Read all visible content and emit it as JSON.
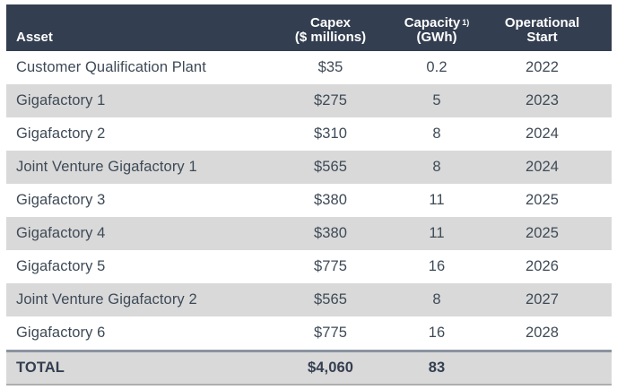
{
  "colors": {
    "header_bg": "#333E50",
    "header_text": "#FFFFFF",
    "row_bg": "#FFFFFF",
    "row_alt_bg": "#D9D9D9",
    "body_text": "#3E4A57",
    "total_row_bg": "#D9D9D9",
    "total_border_top": "#8B93A0",
    "total_border_bottom": "#AEAEAE"
  },
  "header": {
    "asset": "Asset",
    "capex_line1": "Capex",
    "capex_line2": "($ millions)",
    "capacity_line1": "Capacity",
    "capacity_sup": "1)",
    "capacity_line2": "(GWh)",
    "start_line1": "Operational",
    "start_line2": "Start"
  },
  "table": {
    "rows": [
      {
        "asset": "Customer Qualification Plant",
        "capex": "$35",
        "capacity": "0.2",
        "start": "2022"
      },
      {
        "asset": "Gigafactory 1",
        "capex": "$275",
        "capacity": "5",
        "start": "2023"
      },
      {
        "asset": "Gigafactory 2",
        "capex": "$310",
        "capacity": "8",
        "start": "2024"
      },
      {
        "asset": "Joint Venture Gigafactory 1",
        "capex": "$565",
        "capacity": "8",
        "start": "2024"
      },
      {
        "asset": "Gigafactory 3",
        "capex": "$380",
        "capacity": "11",
        "start": "2025"
      },
      {
        "asset": "Gigafactory 4",
        "capex": "$380",
        "capacity": "11",
        "start": "2025"
      },
      {
        "asset": "Gigafactory 5",
        "capex": "$775",
        "capacity": "16",
        "start": "2026"
      },
      {
        "asset": "Joint Venture Gigafactory 2",
        "capex": "$565",
        "capacity": "8",
        "start": "2027"
      },
      {
        "asset": "Gigafactory 6",
        "capex": "$775",
        "capacity": "16",
        "start": "2028"
      }
    ],
    "total": {
      "asset": "TOTAL",
      "capex": "$4,060",
      "capacity": "83",
      "start": ""
    }
  },
  "chart_data": {
    "type": "table",
    "columns": [
      "Asset",
      "Capex ($ millions)",
      "Capacity 1) (GWh)",
      "Operational Start"
    ],
    "rows": [
      [
        "Customer Qualification Plant",
        "$35",
        "0.2",
        "2022"
      ],
      [
        "Gigafactory 1",
        "$275",
        "5",
        "2023"
      ],
      [
        "Gigafactory 2",
        "$310",
        "8",
        "2024"
      ],
      [
        "Joint Venture Gigafactory 1",
        "$565",
        "8",
        "2024"
      ],
      [
        "Gigafactory 3",
        "$380",
        "11",
        "2025"
      ],
      [
        "Gigafactory 4",
        "$380",
        "11",
        "2025"
      ],
      [
        "Gigafactory 5",
        "$775",
        "16",
        "2026"
      ],
      [
        "Joint Venture Gigafactory 2",
        "$565",
        "8",
        "2027"
      ],
      [
        "Gigafactory 6",
        "$775",
        "16",
        "2028"
      ],
      [
        "TOTAL",
        "$4,060",
        "83",
        ""
      ]
    ]
  }
}
